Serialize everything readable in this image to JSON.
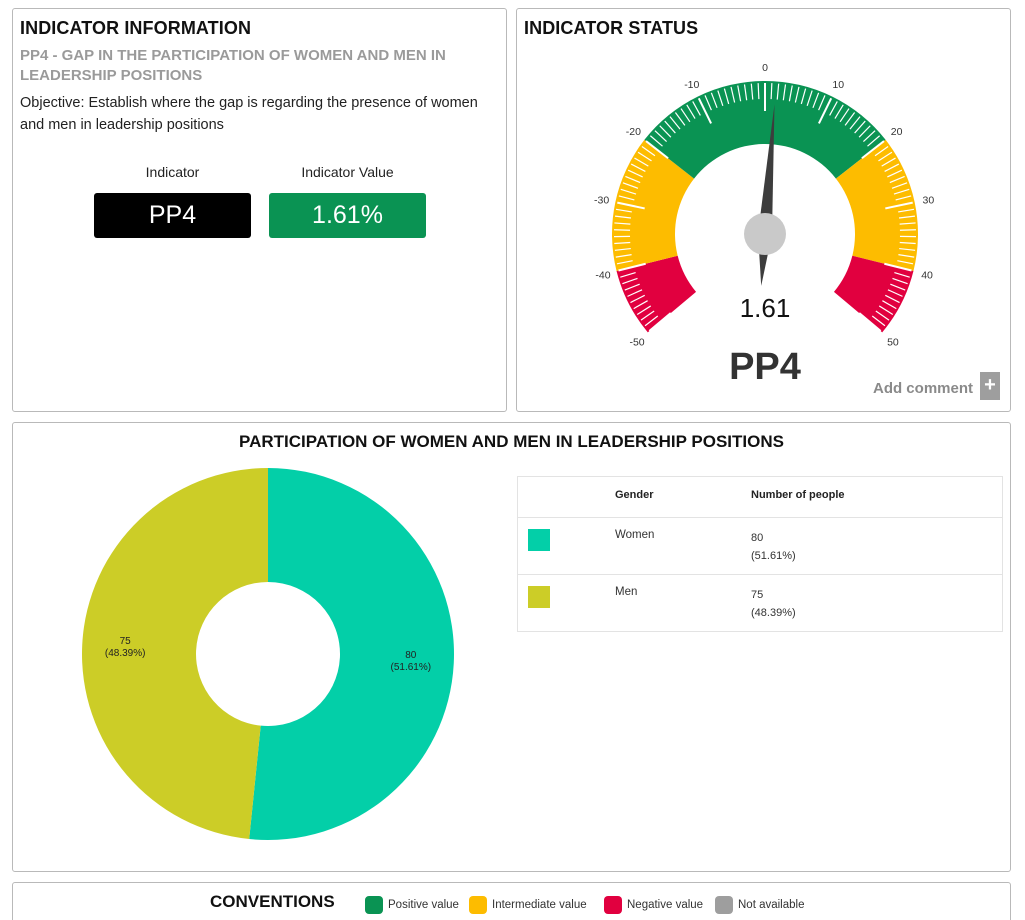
{
  "colors": {
    "positive": "#0a9353",
    "intermediate": "#fdbc00",
    "negative": "#e1003f",
    "not_available": "#9e9e9e",
    "women": "#03cfa8",
    "men": "#cccd27"
  },
  "indicator_info": {
    "title": "INDICATOR INFORMATION",
    "subtitle": "PP4 - GAP IN THE PARTICIPATION OF WOMEN AND MEN IN LEADERSHIP POSITIONS",
    "objective": "Objective: Establish where the gap is regarding the presence of women and men in leadership positions",
    "indicator_label": "Indicator",
    "indicator_code": "PP4",
    "value_label": "Indicator Value",
    "value": "1.61%"
  },
  "indicator_status": {
    "title": "INDICATOR STATUS",
    "gauge": {
      "min": -50,
      "max": 50,
      "value": 1.61,
      "value_text": "1.61",
      "code": "PP4",
      "tick_labels": [
        "-50",
        "-40",
        "-30",
        "-20",
        "-10",
        "0",
        "10",
        "20",
        "30",
        "40",
        "50"
      ],
      "bands": [
        {
          "from": -50,
          "to": -40,
          "status": "negative"
        },
        {
          "from": -40,
          "to": -20,
          "status": "intermediate"
        },
        {
          "from": -20,
          "to": 20,
          "status": "positive"
        },
        {
          "from": 20,
          "to": 40,
          "status": "intermediate"
        },
        {
          "from": 40,
          "to": 50,
          "status": "negative"
        }
      ]
    },
    "add_comment": "Add comment",
    "plus": "+"
  },
  "participation": {
    "title": "PARTICIPATION OF WOMEN AND MEN IN LEADERSHIP POSITIONS",
    "table": {
      "headers": [
        "Gender",
        "Number of people"
      ],
      "rows": [
        {
          "gender": "Women",
          "count": "80",
          "pct": "(51.61%)"
        },
        {
          "gender": "Men",
          "count": "75",
          "pct": "(48.39%)"
        }
      ]
    }
  },
  "chart_data": {
    "type": "pie",
    "categories": [
      "Women",
      "Men"
    ],
    "values": [
      80,
      75
    ],
    "labels": [
      {
        "value": "80",
        "pct": "(51.61%)"
      },
      {
        "value": "75",
        "pct": "(48.39%)"
      }
    ]
  },
  "conventions": {
    "title": "CONVENTIONS",
    "items": [
      {
        "label": "Positive value",
        "color_key": "positive"
      },
      {
        "label": "Intermediate value",
        "color_key": "intermediate"
      },
      {
        "label": "Negative value",
        "color_key": "negative"
      },
      {
        "label": "Not available",
        "color_key": "not_available"
      }
    ]
  }
}
